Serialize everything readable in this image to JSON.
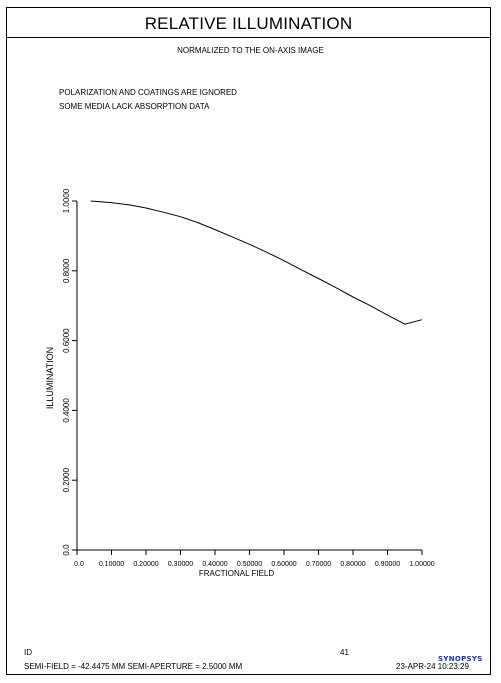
{
  "title": "RELATIVE ILLUMINATION",
  "subtitle": "NORMALIZED TO THE ON-AXIS IMAGE",
  "notes": [
    "POLARIZATION AND COATINGS ARE IGNORED",
    "SOME MEDIA LACK ABSORPTION DATA"
  ],
  "footer": {
    "id_label": "ID",
    "page_number": "41",
    "semi_info": "SEMI-FIELD =  -42.4475 MM    SEMI-APERTURE =   2.5000 MM",
    "datetime": "23-APR-24  10:23:29",
    "logo_text": "SYNOPSYS"
  },
  "colors": {
    "line": "#000000",
    "logo": "#1a2fd6"
  },
  "chart_data": {
    "type": "line",
    "xlabel": "FRACTIONAL FIELD",
    "ylabel": "ILLUMINATION",
    "xlim": [
      0,
      1
    ],
    "ylim": [
      0,
      1
    ],
    "x_ticks": [
      0,
      0.1,
      0.2,
      0.3,
      0.4,
      0.5,
      0.6,
      0.7,
      0.8,
      0.9,
      1.0
    ],
    "x_tick_labels": [
      "0.0",
      "0.10000",
      "0.20000",
      "0.30000",
      "0.40000",
      "0.50000",
      "0.60000",
      "0.70000",
      "0.80000",
      "0.90000",
      "1.00000"
    ],
    "y_ticks": [
      0,
      0.2,
      0.4,
      0.6,
      0.8,
      1.0
    ],
    "y_tick_labels": [
      "0.0",
      "0.2000",
      "0.4000",
      "0.6000",
      "0.8000",
      "1.0000"
    ],
    "grid": false,
    "series": [
      {
        "x": [
          0.04,
          0.1,
          0.15,
          0.2,
          0.25,
          0.3,
          0.35,
          0.4,
          0.45,
          0.5,
          0.55,
          0.6,
          0.65,
          0.7,
          0.75,
          0.8,
          0.85,
          0.9,
          0.95,
          1.0
        ],
        "values": [
          1.0,
          0.9955,
          0.989,
          0.98,
          0.968,
          0.955,
          0.938,
          0.918,
          0.897,
          0.876,
          0.853,
          0.829,
          0.803,
          0.778,
          0.752,
          0.725,
          0.7,
          0.673,
          0.647,
          0.66
        ]
      }
    ]
  }
}
